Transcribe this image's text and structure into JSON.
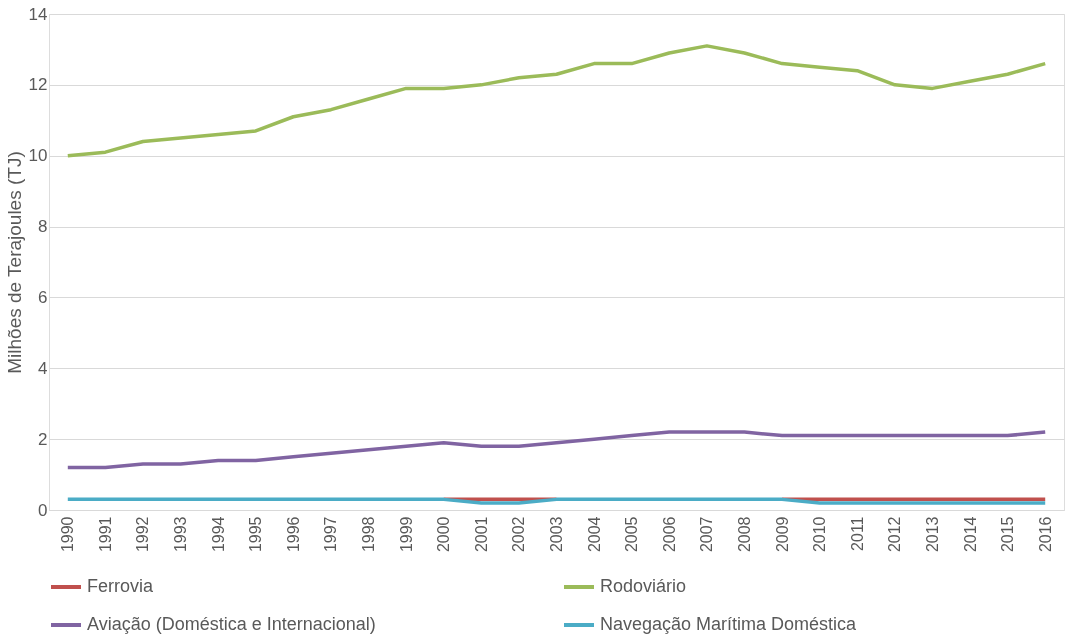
{
  "chart_data": {
    "type": "line",
    "ylabel": "Milhões de Terajoules (TJ)",
    "categories": [
      "1990",
      "1991",
      "1992",
      "1993",
      "1994",
      "1995",
      "1996",
      "1997",
      "1998",
      "1999",
      "2000",
      "2001",
      "2002",
      "2003",
      "2004",
      "2005",
      "2006",
      "2007",
      "2008",
      "2009",
      "2010",
      "2011",
      "2012",
      "2013",
      "2014",
      "2015",
      "2016"
    ],
    "series": [
      {
        "name": "Ferrovia",
        "color": "#c0504d",
        "values": [
          null,
          null,
          null,
          null,
          null,
          null,
          null,
          null,
          null,
          null,
          0.3,
          0.3,
          0.3,
          0.3,
          null,
          null,
          null,
          null,
          null,
          0.3,
          0.3,
          0.3,
          0.3,
          0.3,
          0.3,
          0.3,
          0.3
        ]
      },
      {
        "name": "Rodoviário",
        "color": "#9bbb59",
        "values": [
          10.0,
          10.1,
          10.4,
          10.5,
          10.6,
          10.7,
          11.1,
          11.3,
          11.6,
          11.9,
          11.9,
          12.0,
          12.2,
          12.3,
          12.6,
          12.6,
          12.9,
          13.1,
          12.9,
          12.6,
          12.5,
          12.4,
          12.0,
          11.9,
          12.1,
          12.3,
          12.6
        ]
      },
      {
        "name": "Aviação (Doméstica e Internacional)",
        "color": "#8064a2",
        "values": [
          1.2,
          1.2,
          1.3,
          1.3,
          1.4,
          1.4,
          1.5,
          1.6,
          1.7,
          1.8,
          1.9,
          1.8,
          1.8,
          1.9,
          2.0,
          2.1,
          2.2,
          2.2,
          2.2,
          2.1,
          2.1,
          2.1,
          2.1,
          2.1,
          2.1,
          2.1,
          2.2
        ]
      },
      {
        "name": "Navegação Marítima Doméstica",
        "color": "#4bacc6",
        "values": [
          0.3,
          0.3,
          0.3,
          0.3,
          0.3,
          0.3,
          0.3,
          0.3,
          0.3,
          0.3,
          0.3,
          0.2,
          0.2,
          0.3,
          0.3,
          0.3,
          0.3,
          0.3,
          0.3,
          0.3,
          0.2,
          0.2,
          0.2,
          0.2,
          0.2,
          0.2,
          0.2
        ]
      }
    ],
    "ylim": [
      0,
      14
    ],
    "yticks": [
      0,
      2,
      4,
      6,
      8,
      10,
      12,
      14
    ],
    "grid": "y",
    "legend": "bottom",
    "marker": "none",
    "line_style": "solid"
  }
}
